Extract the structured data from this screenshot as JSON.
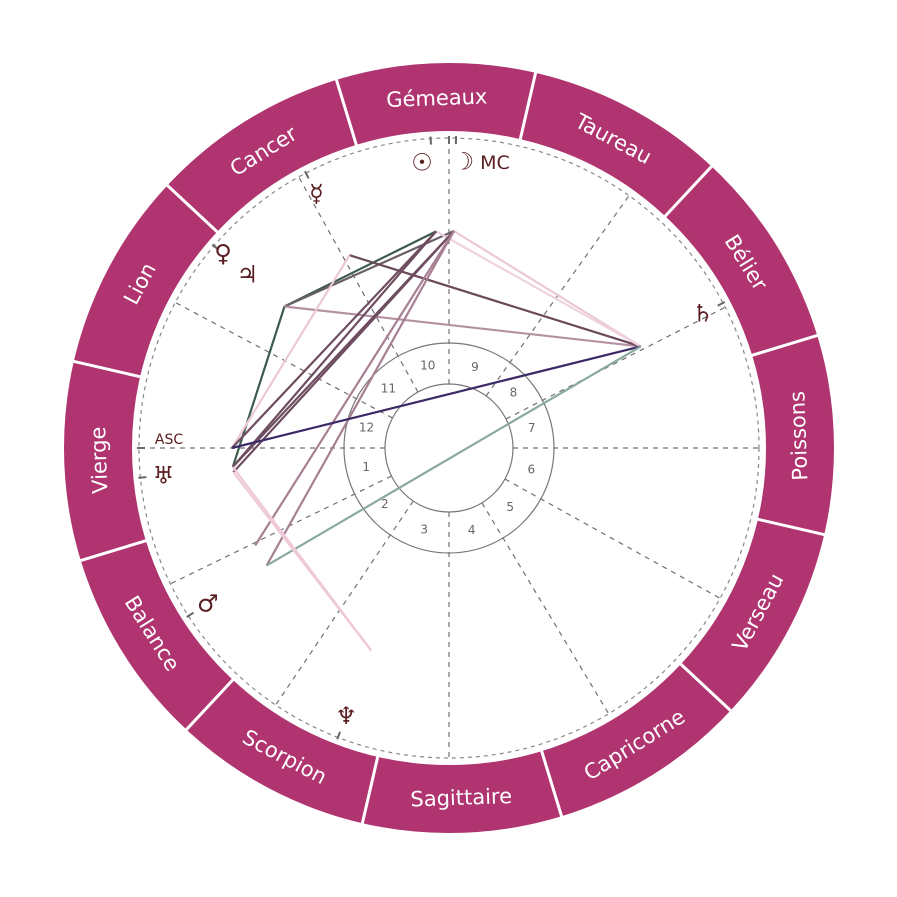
{
  "colors": {
    "ring": "#b0346f",
    "ring_divider": "#ffffff",
    "sign_text": "#ffffff",
    "glyph": "#5a1f22",
    "cusp_line": "#707070",
    "house_circle": "#777777"
  },
  "zodiac_offset_deg": 17,
  "signs": [
    {
      "name": "Bélier",
      "start": 0
    },
    {
      "name": "Taureau",
      "start": 30
    },
    {
      "name": "Gémeaux",
      "start": 60
    },
    {
      "name": "Cancer",
      "start": 90
    },
    {
      "name": "Lion",
      "start": 120
    },
    {
      "name": "Vierge",
      "start": 150
    },
    {
      "name": "Balance",
      "start": 180
    },
    {
      "name": "Scorpion",
      "start": 210
    },
    {
      "name": "Sagittaire",
      "start": 240
    },
    {
      "name": "Capricorne",
      "start": 270
    },
    {
      "name": "Verseau",
      "start": 300
    },
    {
      "name": "Poissons",
      "start": 330
    }
  ],
  "houses": [
    {
      "num": "1",
      "cusp": 163
    },
    {
      "num": "2",
      "cusp": 189
    },
    {
      "num": "3",
      "cusp": 219
    },
    {
      "num": "4",
      "cusp": 253
    },
    {
      "num": "5",
      "cusp": 284
    },
    {
      "num": "6",
      "cusp": 314
    },
    {
      "num": "7",
      "cusp": 343
    },
    {
      "num": "8",
      "cusp": 10
    },
    {
      "num": "9",
      "cusp": 37.5
    },
    {
      "num": "10",
      "cusp": 73
    },
    {
      "num": "11",
      "cusp": 102
    },
    {
      "num": "12",
      "cusp": 135
    }
  ],
  "angles": [
    {
      "id": "asc",
      "label": "ASC",
      "longitude": 163
    },
    {
      "id": "mc",
      "label": "MC",
      "longitude": 73
    }
  ],
  "planets": [
    {
      "id": "sun",
      "glyph": "☉",
      "longitude": 76.4
    },
    {
      "id": "moon",
      "glyph": "☽",
      "longitude": 71.7
    },
    {
      "id": "mercury",
      "glyph": "☿",
      "longitude": 100.5
    },
    {
      "id": "venus",
      "glyph": "♀",
      "longitude": 122.3
    },
    {
      "id": "jupiter",
      "glyph": "♃",
      "longitude": 122.3
    },
    {
      "id": "uranus",
      "glyph": "♅",
      "longitude": 168.5
    },
    {
      "id": "mars",
      "glyph": "♂",
      "longitude": 195.8
    },
    {
      "id": "neptune",
      "glyph": "♆",
      "longitude": 232
    },
    {
      "id": "saturn",
      "glyph": "♄",
      "longitude": 10.9
    }
  ],
  "aspect_points": [
    {
      "id": "sun",
      "longitude": 76.4
    },
    {
      "id": "moon",
      "longitude": 71.7
    },
    {
      "id": "mercury",
      "longitude": 100.3
    },
    {
      "id": "venus",
      "longitude": 122.3
    },
    {
      "id": "asc",
      "longitude": 163
    },
    {
      "id": "uranus",
      "longitude": 168
    },
    {
      "id": "uranus2",
      "longitude": 169.4
    },
    {
      "id": "mars",
      "longitude": 195.8
    },
    {
      "id": "point",
      "longitude": 189.7
    },
    {
      "id": "neptune",
      "longitude": 232
    },
    {
      "id": "saturn",
      "longitude": 10.9
    }
  ],
  "aspects": [
    {
      "from": "sun",
      "to": "venus",
      "color": "#3d5a4e"
    },
    {
      "from": "venus",
      "to": "uranus",
      "color": "#3d5a4e"
    },
    {
      "from": "moon",
      "to": "venus",
      "color": "#6a5f66"
    },
    {
      "from": "venus",
      "to": "saturn",
      "color": "#b58fa2"
    },
    {
      "from": "mercury",
      "to": "saturn",
      "color": "#6b4a5c"
    },
    {
      "from": "mercury",
      "to": "asc",
      "color": "#ecc8d6"
    },
    {
      "from": "moon",
      "to": "saturn",
      "color": "#ecc8d6"
    },
    {
      "from": "sun",
      "to": "saturn",
      "color": "#efd2de"
    },
    {
      "from": "sun",
      "to": "asc",
      "color": "#6e4d60"
    },
    {
      "from": "sun",
      "to": "uranus",
      "color": "#6e4d60"
    },
    {
      "from": "moon",
      "to": "uranus",
      "color": "#6e4d60"
    },
    {
      "from": "moon",
      "to": "uranus2",
      "color": "#6e4d60"
    },
    {
      "from": "moon",
      "to": "mars",
      "color": "#a77f93"
    },
    {
      "from": "moon",
      "to": "point",
      "color": "#a77f93"
    },
    {
      "from": "asc",
      "to": "saturn",
      "color": "#3b2a66"
    },
    {
      "from": "mars",
      "to": "saturn",
      "color": "#8aaa9f"
    },
    {
      "from": "uranus",
      "to": "neptune",
      "color": "#efc9d8"
    },
    {
      "from": "uranus2",
      "to": "neptune",
      "color": "#efc9d8"
    }
  ]
}
